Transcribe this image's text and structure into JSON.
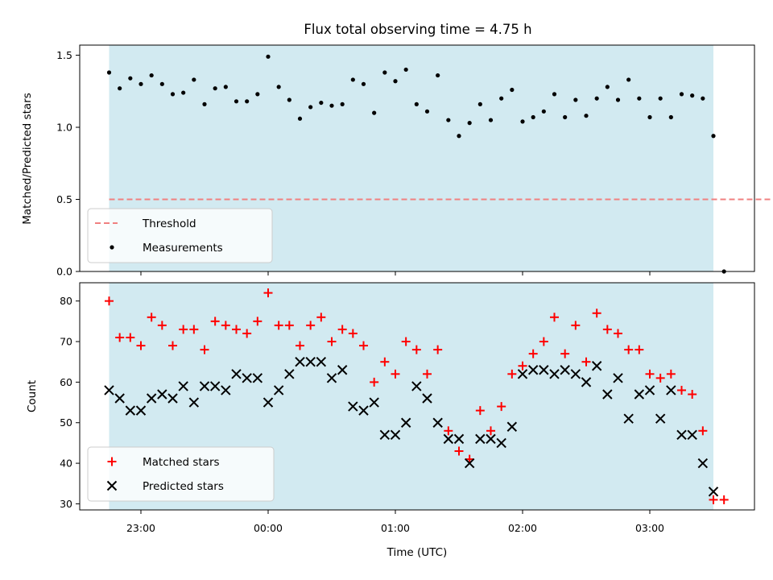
{
  "title": "Flux total observing time = 4.75 h",
  "colors": {
    "observing_band": "#add8e6",
    "threshold": "#f08080",
    "measurement": "#000000",
    "matched": "#ff0000",
    "predicted": "#000000"
  },
  "chart_data": [
    {
      "type": "scatter",
      "panel": "top",
      "ylabel": "Matched/Predicted stars",
      "xlabel": "",
      "ylim": [
        0.0,
        1.57
      ],
      "y_ticks": [
        "0.0",
        "0.5",
        "1.0",
        "1.5"
      ],
      "x_ticks": [
        "23:00",
        "00:00",
        "01:00",
        "02:00",
        "03:00"
      ],
      "legend": {
        "placement": "lower left",
        "entries": [
          "Threshold",
          "Measurements"
        ]
      },
      "threshold": {
        "name": "Threshold",
        "value": 0.5,
        "x_range": [
          "22:45",
          "04:00"
        ]
      },
      "observing_window": [
        "22:45",
        "03:30"
      ],
      "series": [
        {
          "name": "Measurements",
          "x": [
            "22:45",
            "22:50",
            "22:55",
            "23:00",
            "23:05",
            "23:10",
            "23:15",
            "23:20",
            "23:25",
            "23:30",
            "23:35",
            "23:40",
            "23:45",
            "23:50",
            "23:55",
            "00:00",
            "00:05",
            "00:10",
            "00:15",
            "00:20",
            "00:25",
            "00:30",
            "00:35",
            "00:40",
            "00:45",
            "00:50",
            "00:55",
            "01:00",
            "01:05",
            "01:10",
            "01:15",
            "01:20",
            "01:25",
            "01:30",
            "01:35",
            "01:40",
            "01:45",
            "01:50",
            "01:55",
            "02:00",
            "02:05",
            "02:10",
            "02:15",
            "02:20",
            "02:25",
            "02:30",
            "02:35",
            "02:40",
            "02:45",
            "02:50",
            "02:55",
            "03:00",
            "03:05",
            "03:10",
            "03:15",
            "03:20",
            "03:25",
            "03:30",
            "03:35"
          ],
          "y": [
            1.38,
            1.27,
            1.34,
            1.3,
            1.36,
            1.3,
            1.23,
            1.24,
            1.33,
            1.16,
            1.27,
            1.28,
            1.18,
            1.18,
            1.23,
            1.49,
            1.28,
            1.19,
            1.06,
            1.14,
            1.17,
            1.15,
            1.16,
            1.33,
            1.3,
            1.1,
            1.38,
            1.32,
            1.4,
            1.16,
            1.11,
            1.36,
            1.05,
            0.94,
            1.03,
            1.16,
            1.05,
            1.2,
            1.26,
            1.04,
            1.07,
            1.11,
            1.23,
            1.07,
            1.19,
            1.08,
            1.2,
            1.28,
            1.19,
            1.33,
            1.2,
            1.07,
            1.2,
            1.07,
            1.23,
            1.22,
            1.2,
            0.94,
            0.0
          ]
        }
      ]
    },
    {
      "type": "scatter",
      "panel": "bottom",
      "ylabel": "Count",
      "xlabel": "Time (UTC)",
      "ylim": [
        28.5,
        84.5
      ],
      "y_ticks": [
        "30",
        "40",
        "50",
        "60",
        "70",
        "80"
      ],
      "x_ticks": [
        "23:00",
        "00:00",
        "01:00",
        "02:00",
        "03:00"
      ],
      "legend": {
        "placement": "lower left",
        "entries": [
          "Matched stars",
          "Predicted stars"
        ]
      },
      "observing_window": [
        "22:45",
        "03:30"
      ],
      "series": [
        {
          "name": "Matched stars",
          "x": [
            "22:45",
            "22:50",
            "22:55",
            "23:00",
            "23:05",
            "23:10",
            "23:15",
            "23:20",
            "23:25",
            "23:30",
            "23:35",
            "23:40",
            "23:45",
            "23:50",
            "23:55",
            "00:00",
            "00:05",
            "00:10",
            "00:15",
            "00:20",
            "00:25",
            "00:30",
            "00:35",
            "00:40",
            "00:45",
            "00:50",
            "00:55",
            "01:00",
            "01:05",
            "01:10",
            "01:15",
            "01:20",
            "01:25",
            "01:30",
            "01:35",
            "01:40",
            "01:45",
            "01:50",
            "01:55",
            "02:00",
            "02:05",
            "02:10",
            "02:15",
            "02:20",
            "02:25",
            "02:30",
            "02:35",
            "02:40",
            "02:45",
            "02:50",
            "02:55",
            "03:00",
            "03:05",
            "03:10",
            "03:15",
            "03:20",
            "03:25",
            "03:30",
            "03:35"
          ],
          "y": [
            80,
            71,
            71,
            69,
            76,
            74,
            69,
            73,
            73,
            68,
            75,
            74,
            73,
            72,
            75,
            82,
            74,
            74,
            69,
            74,
            76,
            70,
            73,
            72,
            69,
            60,
            65,
            62,
            70,
            68,
            62,
            68,
            48,
            43,
            41,
            53,
            48,
            54,
            62,
            64,
            67,
            70,
            76,
            67,
            74,
            65,
            77,
            73,
            72,
            68,
            68,
            62,
            61,
            62,
            58,
            57,
            48,
            31,
            31
          ]
        },
        {
          "name": "Predicted stars",
          "x": [
            "22:45",
            "22:50",
            "22:55",
            "23:00",
            "23:05",
            "23:10",
            "23:15",
            "23:20",
            "23:25",
            "23:30",
            "23:35",
            "23:40",
            "23:45",
            "23:50",
            "23:55",
            "00:00",
            "00:05",
            "00:10",
            "00:15",
            "00:20",
            "00:25",
            "00:30",
            "00:35",
            "00:40",
            "00:45",
            "00:50",
            "00:55",
            "01:00",
            "01:05",
            "01:10",
            "01:15",
            "01:20",
            "01:25",
            "01:30",
            "01:35",
            "01:40",
            "01:45",
            "01:50",
            "01:55",
            "02:00",
            "02:05",
            "02:10",
            "02:15",
            "02:20",
            "02:25",
            "02:30",
            "02:35",
            "02:40",
            "02:45",
            "02:50",
            "02:55",
            "03:00",
            "03:05",
            "03:10",
            "03:15",
            "03:20",
            "03:25",
            "03:30"
          ],
          "y": [
            58,
            56,
            53,
            53,
            56,
            57,
            56,
            59,
            55,
            59,
            59,
            58,
            62,
            61,
            61,
            55,
            58,
            62,
            65,
            65,
            65,
            61,
            63,
            54,
            53,
            55,
            47,
            47,
            50,
            59,
            56,
            50,
            46,
            46,
            40,
            46,
            46,
            45,
            49,
            62,
            63,
            63,
            62,
            63,
            62,
            60,
            64,
            57,
            61,
            51,
            57,
            58,
            51,
            58,
            47,
            47,
            40,
            33
          ]
        }
      ]
    }
  ]
}
